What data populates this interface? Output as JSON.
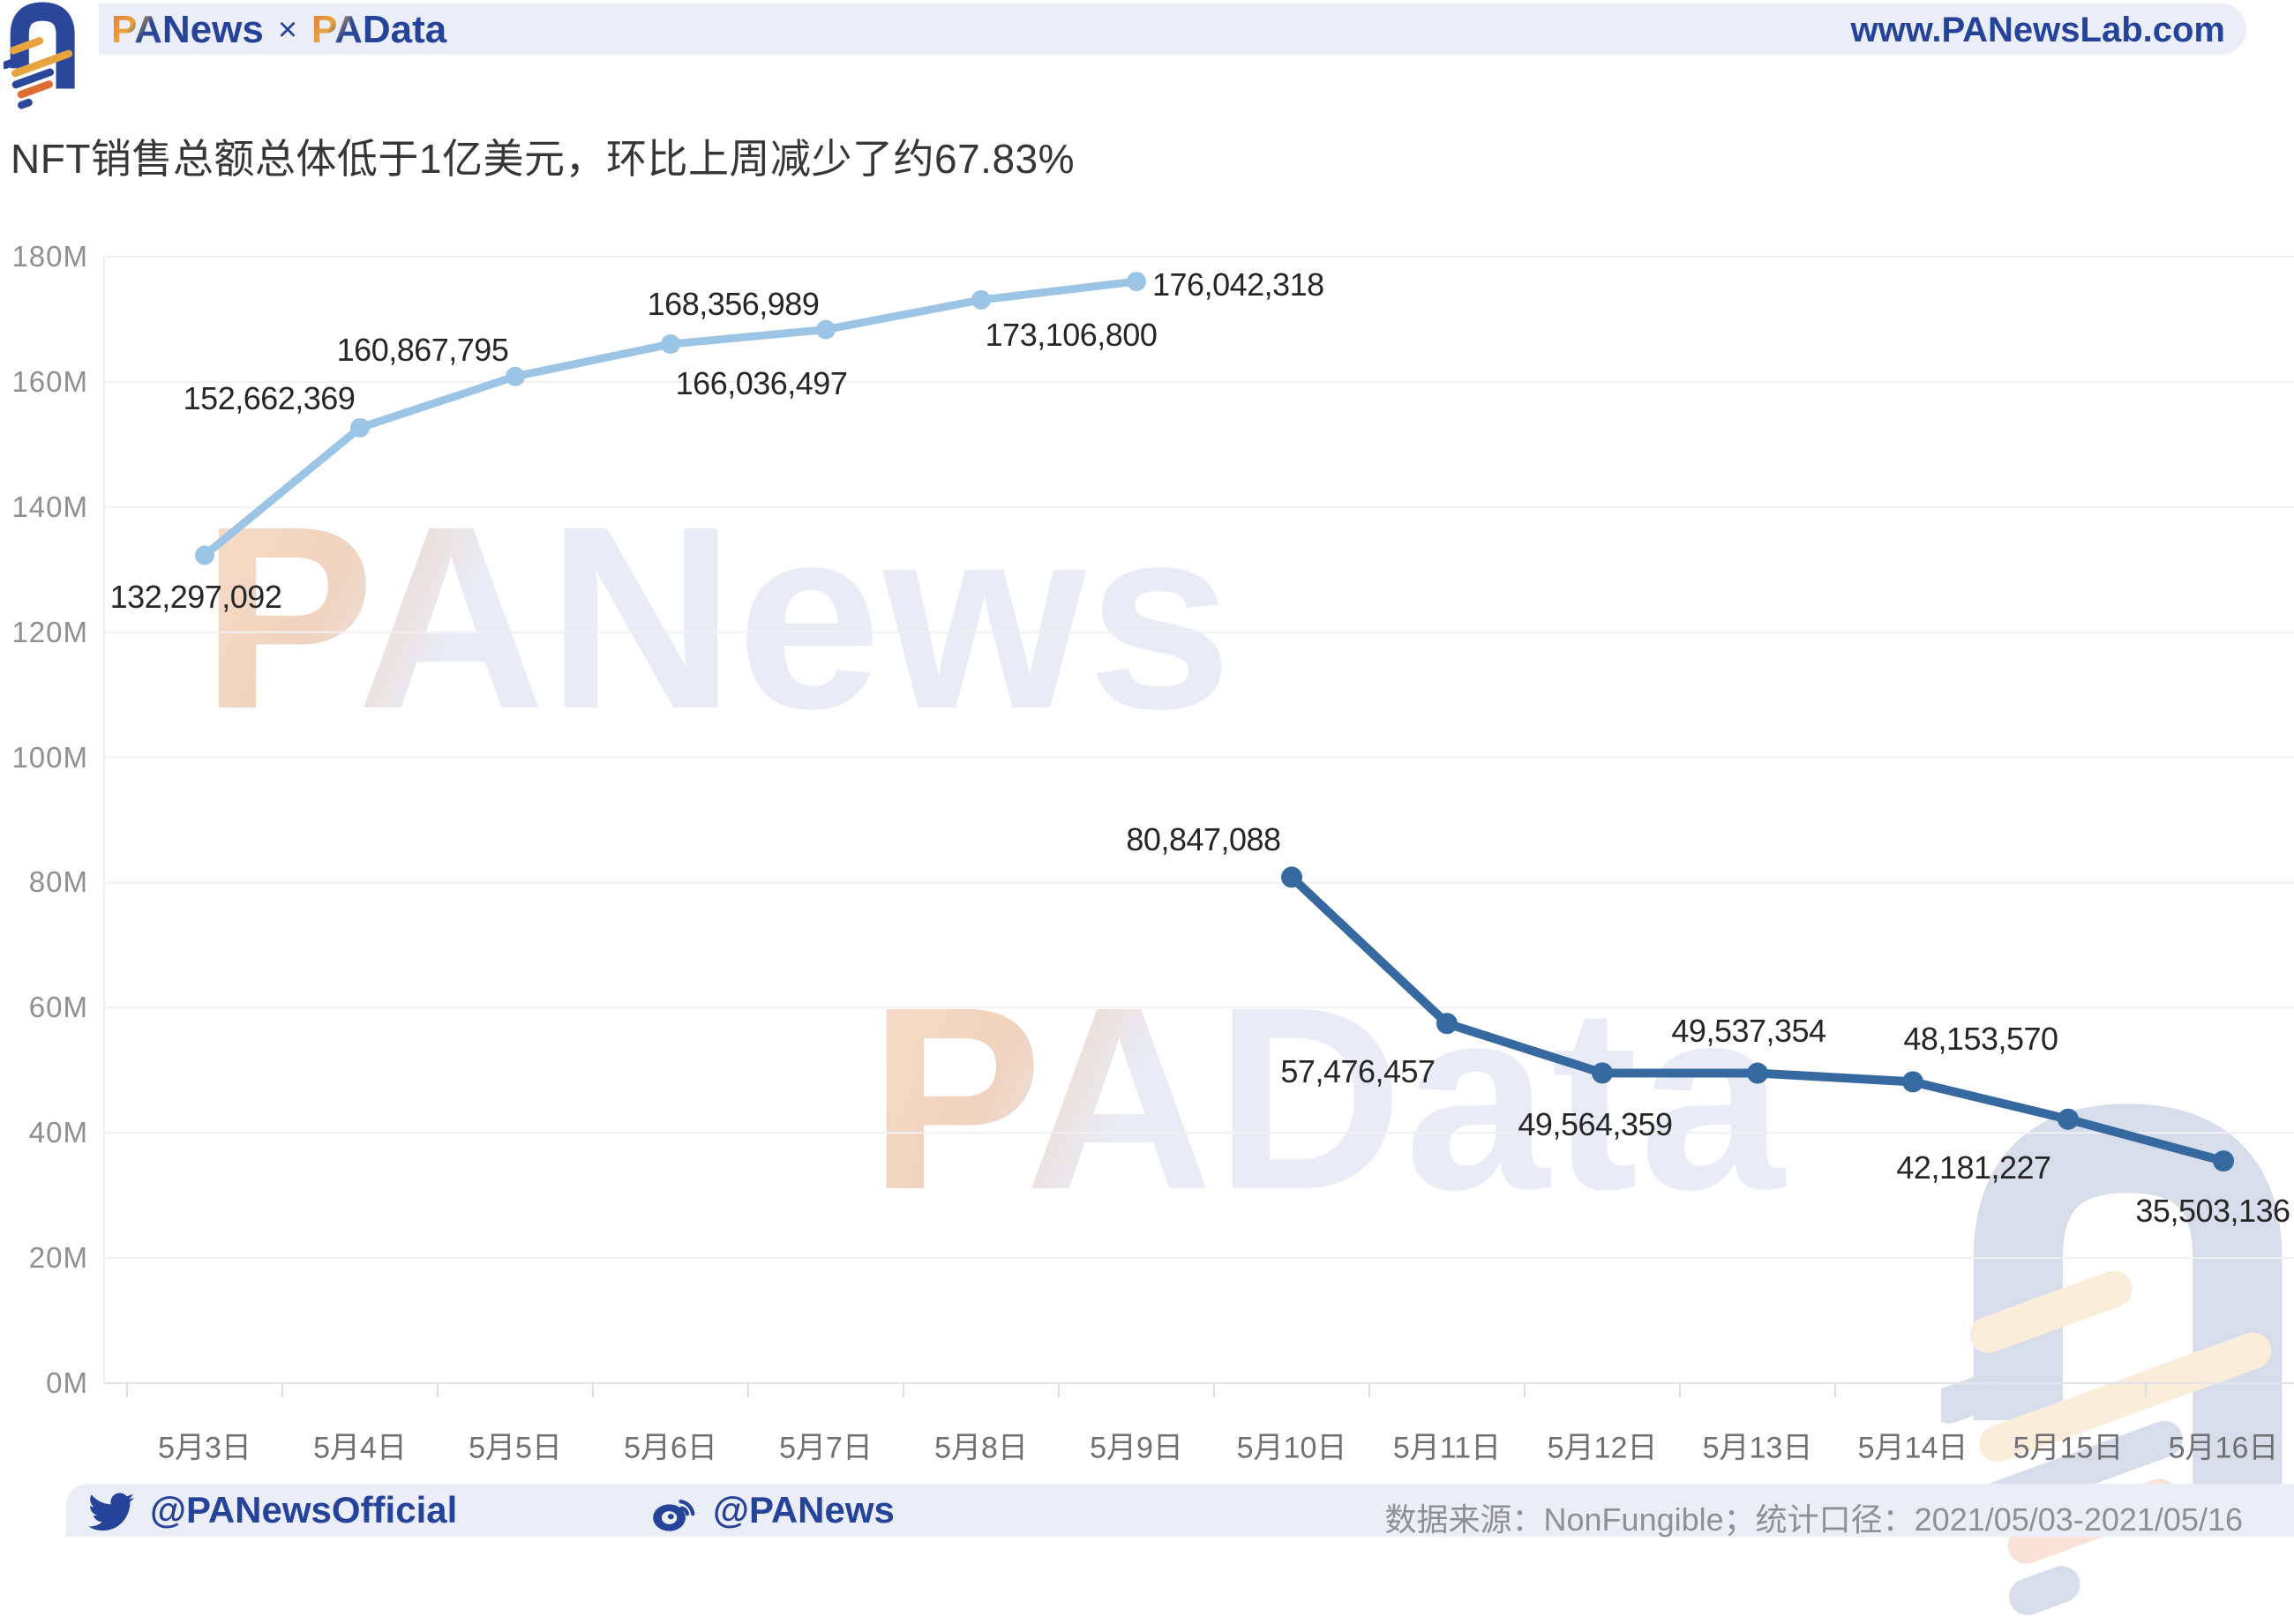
{
  "header": {
    "brand_left_pa": "PA",
    "brand_left_rest": "News",
    "separator": "×",
    "brand_right_pa": "PA",
    "brand_right_rest": "Data",
    "url": "www.PANewsLab.com"
  },
  "title": "NFT销售总额总体低于1亿美元，环比上周减少了约67.83%",
  "watermarks": {
    "text1_pa": "PA",
    "text1_rest": "News",
    "text2_pa": "PA",
    "text2_rest": "Data"
  },
  "footer": {
    "twitter_handle": "@PANewsOfficial",
    "weibo_handle": "@PANews",
    "source_text": "数据来源：NonFungible；统计口径：2021/05/03-2021/05/16"
  },
  "colors": {
    "brand_blue": "#26439a",
    "bar_bg": "#eceef7",
    "grid": "#f0f0f3",
    "axis_line": "#e2e2e8",
    "tick": "#dcdce2",
    "series_light": "#9cc5e5",
    "series_dark": "#36699f"
  },
  "chart_data": {
    "type": "line",
    "title": "NFT销售总额总体低于1亿美元，环比上周减少了约67.83%",
    "categories": [
      "5月3日",
      "5月4日",
      "5月5日",
      "5月6日",
      "5月7日",
      "5月8日",
      "5月9日",
      "5月10日",
      "5月11日",
      "5月12日",
      "5月13日",
      "5月14日",
      "5月15日",
      "5月16日"
    ],
    "xlabel": "",
    "ylabel": "",
    "ylim": [
      0,
      180000000
    ],
    "y_tick_step": 20000000,
    "y_tick_labels": [
      "0M",
      "20M",
      "40M",
      "60M",
      "80M",
      "100M",
      "120M",
      "140M",
      "160M",
      "180M"
    ],
    "grid": "horizontal-only",
    "legend_position": "none",
    "series": [
      {
        "id": "week-1-line",
        "color": "#9cc5e5",
        "start_index": 0,
        "values": [
          132297092,
          152662369,
          160867795,
          166036497,
          168356989,
          173106800,
          176042318
        ],
        "label_offsets": [
          {
            "dx": -10,
            "dy": 48
          },
          {
            "dx": -103,
            "dy": -33
          },
          {
            "dx": -105,
            "dy": -30
          },
          {
            "dx": 103,
            "dy": 45
          },
          {
            "dx": -105,
            "dy": -29
          },
          {
            "dx": 102,
            "dy": 40
          },
          {
            "dx": 18,
            "dy": 4,
            "anchor": "left"
          }
        ]
      },
      {
        "id": "week-2-line",
        "color": "#36699f",
        "start_index": 7,
        "values": [
          80847088,
          57476457,
          49564359,
          49537354,
          48153570,
          42181227,
          35503136
        ],
        "label_offsets": [
          {
            "dx": -100,
            "dy": -42
          },
          {
            "dx": -101,
            "dy": 55
          },
          {
            "dx": -8,
            "dy": 59
          },
          {
            "dx": -10,
            "dy": -48
          },
          {
            "dx": 77,
            "dy": -48
          },
          {
            "dx": -107,
            "dy": 55
          },
          {
            "dx": -12,
            "dy": 57
          }
        ]
      }
    ]
  }
}
